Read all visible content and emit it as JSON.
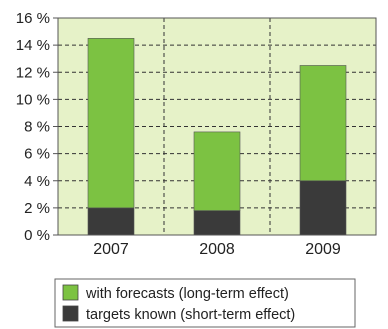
{
  "chart_data": {
    "type": "bar",
    "stacked": true,
    "categories": [
      "2007",
      "2008",
      "2009"
    ],
    "series": [
      {
        "name": "targets known (short-term effect)",
        "values": [
          2.0,
          1.8,
          4.0
        ],
        "color": "#3a3a3a"
      },
      {
        "name": "with forecasts (long-term effect)",
        "values": [
          12.5,
          5.8,
          8.5
        ],
        "color": "#7cc242"
      }
    ],
    "ylim": [
      0,
      16
    ],
    "yticks": [
      {
        "value": 0,
        "label": "0 %"
      },
      {
        "value": 2,
        "label": "2 %"
      },
      {
        "value": 4,
        "label": "4 %"
      },
      {
        "value": 6,
        "label": "6 %"
      },
      {
        "value": 8,
        "label": "8 %"
      },
      {
        "value": 10,
        "label": "10 %"
      },
      {
        "value": 12,
        "label": "12 %"
      },
      {
        "value": 14,
        "label": "14 %"
      },
      {
        "value": 16,
        "label": "16 %"
      }
    ],
    "plot_background": "#e6f2c8",
    "grid": true,
    "legend": {
      "placement": "bottom",
      "entries": [
        "with forecasts (long-term effect)",
        "targets known (short-term effect)"
      ]
    }
  }
}
